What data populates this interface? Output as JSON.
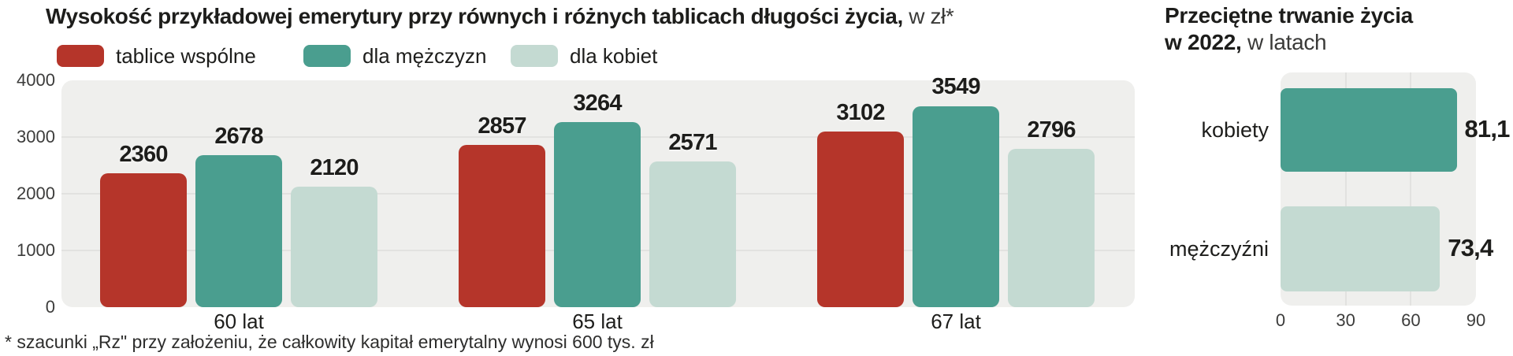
{
  "left_chart": {
    "title_bold": "Wysokość przykładowej emerytury przy równych i różnych tablicach długości życia,",
    "title_suffix": " w zł*",
    "footnote": "* szacunki „Rz\" przy założeniu, że całkowity kapitał emerytalny wynosi 600 tys. zł"
  },
  "right_chart": {
    "title_line1": "Przeciętne trwanie życia",
    "title_bold2": "w 2022,",
    "title_suffix": " w latach"
  },
  "colors": {
    "red": "#b5352a",
    "teal": "#4a9e8f",
    "light_teal": "#c4dad2",
    "panel": "#efefed",
    "gridline": "#e2e2e0"
  },
  "chart_data": [
    {
      "type": "bar",
      "title": "Wysokość przykładowej emerytury przy równych i różnych tablicach długości życia, w zł*",
      "categories": [
        "60 lat",
        "65 lat",
        "67 lat"
      ],
      "series": [
        {
          "name": "tablice wspólne",
          "color": "#b5352a",
          "values": [
            2360,
            2857,
            3102
          ]
        },
        {
          "name": "dla mężczyzn",
          "color": "#4a9e8f",
          "values": [
            2678,
            3264,
            3549
          ]
        },
        {
          "name": "dla kobiet",
          "color": "#c4dad2",
          "values": [
            2120,
            2571,
            2796
          ]
        }
      ],
      "ylabel": "",
      "ylim": [
        0,
        4000
      ],
      "yticks": [
        0,
        1000,
        2000,
        3000,
        4000
      ],
      "grid": true,
      "legend_position": "top",
      "footnote": "* szacunki „Rz\" przy założeniu, że całkowity kapitał emerytalny wynosi 600 tys. zł"
    },
    {
      "type": "bar",
      "orientation": "horizontal",
      "title": "Przeciętne trwanie życia w 2022, w latach",
      "categories": [
        "kobiety",
        "mężczyźni"
      ],
      "values": [
        81.1,
        73.4
      ],
      "value_labels": [
        "81,1",
        "73,4"
      ],
      "colors": [
        "#4a9e8f",
        "#c4dad2"
      ],
      "xlim": [
        0,
        90
      ],
      "xticks": [
        0,
        30,
        60,
        90
      ],
      "grid": true
    }
  ]
}
